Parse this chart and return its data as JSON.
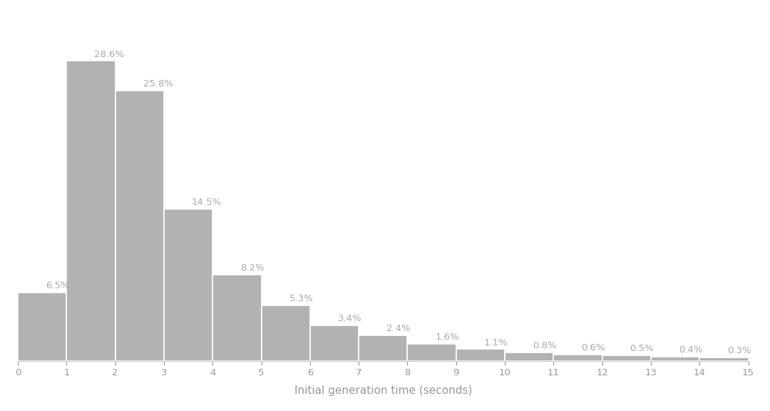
{
  "categories": [
    0,
    1,
    2,
    3,
    4,
    5,
    6,
    7,
    8,
    9,
    10,
    11,
    12,
    13,
    14
  ],
  "values": [
    6.5,
    28.6,
    25.8,
    14.5,
    8.2,
    5.3,
    3.4,
    2.4,
    1.6,
    1.1,
    0.8,
    0.6,
    0.5,
    0.4,
    0.3
  ],
  "bar_color": "#b2b2b2",
  "bar_edge_color": "#ffffff",
  "labels": [
    "6.5%",
    "28.6%",
    "25.8%",
    "14.5%",
    "8.2%",
    "5.3%",
    "3.4%",
    "2.4%",
    "1.6%",
    "1.1%",
    "0.8%",
    "0.6%",
    "0.5%",
    "0.4%",
    "0.3%"
  ],
  "xlabel": "Initial generation time (seconds)",
  "xlim": [
    0,
    15
  ],
  "ylim": [
    0,
    33
  ],
  "background_color": "#ffffff",
  "text_color": "#aaaaaa",
  "label_fontsize": 9.5,
  "xlabel_fontsize": 11,
  "tick_color": "#999999"
}
